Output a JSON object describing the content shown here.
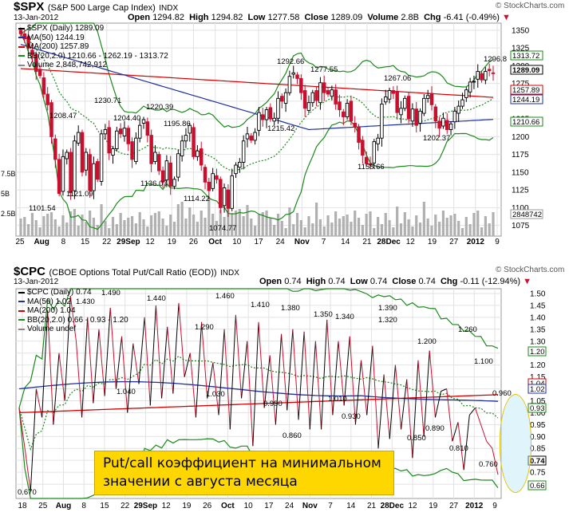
{
  "watermark": "© StockCharts.com",
  "spx": {
    "symbol": "$SPX",
    "name": "(S&P 500 Large Cap Index)",
    "exchange": "INDX",
    "date": "13-Jan-2012",
    "open_label": "Open",
    "open": "1294.82",
    "high_label": "High",
    "high": "1294.82",
    "low_label": "Low",
    "low": "1277.58",
    "close_label": "Close",
    "close": "1289.09",
    "volume_label": "Volume",
    "volume": "2.8B",
    "chg_label": "Chg",
    "chg": "-6.41 (-0.49%)",
    "legend": [
      {
        "text": "$SPX (Daily) 1289.09",
        "color": "#000000"
      },
      {
        "text": "MA(50) 1244.19",
        "color": "#1f2fa0"
      },
      {
        "text": "MA(200) 1257.89",
        "color": "#d40000"
      },
      {
        "text": "BB(20,2.0) 1210.66 - 1262.19 - 1313.72",
        "color": "#1a8a1a"
      },
      {
        "text": "Volume 2,848,742,912",
        "color": "#888888"
      }
    ],
    "left_axis_labels": [
      "7.5B",
      "5B",
      "2.5B"
    ],
    "date_labels": [
      "25",
      "Aug",
      "8",
      "15",
      "22",
      "29Sep",
      "12",
      "19",
      "26",
      "Oct",
      "10",
      "17",
      "24",
      "Nov",
      "7",
      "14",
      "21",
      "28Dec",
      "12",
      "19",
      "27",
      "2012",
      "9"
    ]
  },
  "cpc": {
    "symbol": "$CPC",
    "name": "(CBOE Options Total Put/Call Ratio (EOD))",
    "exchange": "INDX",
    "date": "13-Jan-2012",
    "open_label": "Open",
    "open": "0.74",
    "high_label": "High",
    "high": "0.74",
    "low_label": "Low",
    "low": "0.74",
    "close_label": "Close",
    "close": "0.74",
    "chg_label": "Chg",
    "chg": "-0.11 (-12.94%)",
    "legend": [
      {
        "text": "$CPC (Daily) 0.74",
        "color": "#000000"
      },
      {
        "text": "MA(50) 1.02",
        "color": "#1f2fa0"
      },
      {
        "text": "MA(200) 1.04",
        "color": "#d40000"
      },
      {
        "text": "BB(20,2.0) 0.66 - 0.93 - 1.20",
        "color": "#1a8a1a"
      },
      {
        "text": "Volume undef",
        "color": "#888888"
      }
    ],
    "date_labels": [
      "18",
      "25",
      "Aug",
      "8",
      "15",
      "22",
      "29Sep",
      "12",
      "19",
      "26",
      "Oct",
      "10",
      "17",
      "24",
      "Nov",
      "7",
      "14",
      "21",
      "28Dec",
      "12",
      "19",
      "27",
      "2012",
      "9"
    ]
  },
  "annotation": {
    "line1": "Put/call коэффициент на минимальном",
    "line2": "значении с августа месяца"
  },
  "colors": {
    "up": "#000000",
    "down": "#c8102e",
    "ma50": "#1f2fa0",
    "ma200": "#d40000",
    "bb": "#1a8a1a",
    "volume": "#b0b0b0",
    "grid": "#e2e2e2",
    "highlight": "#e6c200"
  },
  "chart_data": [
    {
      "type": "candlestick",
      "title": "$SPX (S&P 500 Large Cap Index) INDX",
      "ylim": [
        1060,
        1360
      ],
      "y_ticks": [
        1075,
        1100,
        1125,
        1150,
        1175,
        1200,
        1225,
        1250,
        1275,
        1300,
        1325,
        1350
      ],
      "annotated_points": [
        {
          "label": "1208.47",
          "value": 1208.47
        },
        {
          "label": "1101.54",
          "value": 1101.54
        },
        {
          "label": "1121.09",
          "value": 1121.09
        },
        {
          "label": "1230.71",
          "value": 1230.71
        },
        {
          "label": "1204.40",
          "value": 1204.4
        },
        {
          "label": "1220.39",
          "value": 1220.39
        },
        {
          "label": "1136.07",
          "value": 1136.07
        },
        {
          "label": "1195.86",
          "value": 1195.86
        },
        {
          "label": "1114.22",
          "value": 1114.22
        },
        {
          "label": "1074.77",
          "value": 1074.77
        },
        {
          "label": "1292.66",
          "value": 1292.66
        },
        {
          "label": "1215.42",
          "value": 1215.42
        },
        {
          "label": "1277.55",
          "value": 1277.55
        },
        {
          "label": "1158.66",
          "value": 1158.66
        },
        {
          "label": "1267.06",
          "value": 1267.06
        },
        {
          "label": "1202.37",
          "value": 1202.37
        },
        {
          "label": "1296.8",
          "value": 1296.8
        }
      ],
      "closes": [
        1345,
        1338,
        1325,
        1316,
        1292,
        1286,
        1260,
        1245,
        1200,
        1168,
        1120,
        1172,
        1178,
        1121,
        1194,
        1206,
        1150,
        1178,
        1124,
        1162,
        1140,
        1204,
        1210,
        1177,
        1183,
        1208,
        1204,
        1212,
        1190,
        1168,
        1198,
        1216,
        1224,
        1202,
        1162,
        1178,
        1152,
        1136,
        1166,
        1130,
        1140,
        1176,
        1194,
        1202,
        1216,
        1172,
        1180,
        1160,
        1136,
        1124,
        1148,
        1140,
        1100,
        1128,
        1099,
        1145,
        1160,
        1164,
        1194,
        1204,
        1195,
        1206,
        1234,
        1224,
        1238,
        1225,
        1226,
        1254,
        1250,
        1262,
        1285,
        1290,
        1282,
        1262,
        1240,
        1248,
        1262,
        1251,
        1276,
        1262,
        1260,
        1266,
        1246,
        1238,
        1228,
        1247,
        1222,
        1214,
        1192,
        1174,
        1162,
        1160,
        1193,
        1198,
        1246,
        1256,
        1265,
        1261,
        1234,
        1240,
        1254,
        1225,
        1239,
        1216,
        1236,
        1254,
        1258,
        1245,
        1222,
        1212,
        1226,
        1210,
        1218,
        1236,
        1243,
        1252,
        1266,
        1277,
        1278,
        1292,
        1280,
        1292,
        1293,
        1289
      ],
      "overlays": {
        "MA(50)": 1244.19,
        "MA(200)": 1257.89,
        "BB upper": 1313.72,
        "BB middle": 1262.19,
        "BB lower": 1210.66
      },
      "last_volume": 2848742,
      "volume_last_label": "2848742"
    },
    {
      "type": "line",
      "title": "$CPC (CBOE Options Total Put/Call Ratio (EOD)) INDX",
      "ylim": [
        0.64,
        1.52
      ],
      "y_ticks": [
        0.7,
        0.75,
        0.8,
        0.85,
        0.9,
        0.95,
        1.0,
        1.05,
        1.1,
        1.15,
        1.2,
        1.25,
        1.3,
        1.35,
        1.4,
        1.45,
        1.5
      ],
      "values": [
        1.02,
        0.85,
        0.67,
        1.1,
        0.98,
        1.43,
        0.95,
        1.25,
        1.05,
        1.49,
        1.3,
        0.98,
        1.4,
        1.04,
        1.35,
        1.07,
        1.44,
        1.1,
        1.32,
        1.0,
        1.29,
        1.12,
        1.4,
        1.03,
        1.45,
        1.06,
        1.36,
        1.08,
        1.46,
        1.15,
        1.25,
        0.98,
        1.38,
        1.06,
        1.21,
        0.99,
        1.35,
        0.93,
        1.41,
        1.06,
        1.3,
        0.86,
        1.38,
        1.02,
        1.24,
        0.95,
        1.33,
        1.01,
        1.35,
        0.97,
        1.34,
        0.93,
        1.3,
        0.93,
        1.39,
        0.99,
        1.3,
        1.03,
        1.32,
        0.95,
        1.22,
        0.99,
        1.28,
        0.85,
        1.16,
        0.89,
        1.2,
        0.93,
        1.14,
        0.81,
        1.22,
        0.9,
        1.26,
        0.98,
        1.09,
        1.1,
        0.88,
        0.96,
        0.76,
        0.99,
        1.02,
        0.95,
        0.88,
        0.85,
        0.74
      ],
      "labeled_points": [
        "0.670",
        "1.430",
        "1.490",
        "1.040",
        "1.440",
        "1.030",
        "1.290",
        "1.460",
        "0.990",
        "1.410",
        "0.860",
        "1.380",
        "1.010",
        "1.350",
        "1.340",
        "0.930",
        "1.390",
        "1.320",
        "0.850",
        "0.890",
        "1.200",
        "0.810",
        "1.260",
        "1.100",
        "0.760",
        "0.960"
      ],
      "right_axis_last": {
        "BB upper": "1.20",
        "MA(200)": "1.04",
        "MA(50)": "1.02",
        "BB middle": "0.93",
        "Close": "0.74",
        "BB lower": "0.66"
      }
    }
  ]
}
